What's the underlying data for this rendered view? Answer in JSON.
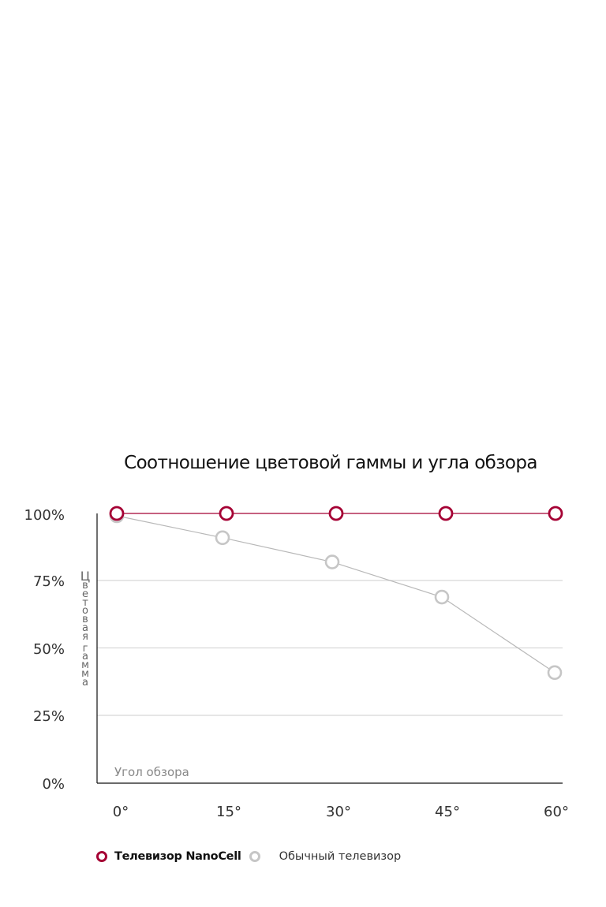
{
  "chart_data": {
    "type": "line",
    "title": "Соотношение цветовой гаммы и угла обзора",
    "xlabel": "Угол обзора",
    "ylabel": "Цветовая гамма",
    "categories": [
      "0°",
      "15°",
      "30°",
      "45°",
      "60°"
    ],
    "x": [
      0,
      15,
      30,
      45,
      60
    ],
    "yticks": [
      "100%",
      "75%",
      "50%",
      "25%",
      "0%"
    ],
    "ylim": [
      0,
      100
    ],
    "grid": true,
    "legend_position": "bottom-left",
    "series": [
      {
        "name": "Телевизор NanoCell",
        "values": [
          100,
          100,
          100,
          100,
          100
        ],
        "color": "#a50034"
      },
      {
        "name": "Обычный телевизор",
        "values": [
          100,
          91,
          82,
          69,
          41
        ],
        "color": "#c6c6c6"
      }
    ]
  },
  "ylabel_chars": [
    "Ц",
    "в",
    "е",
    "т",
    "о",
    "в",
    "а",
    "я",
    " ",
    "г",
    "а",
    "м",
    "м",
    "а"
  ]
}
